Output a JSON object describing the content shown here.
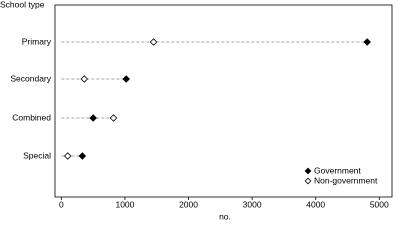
{
  "chart_data": {
    "type": "dot",
    "y_axis_label": "School type",
    "x_axis_label": "no.",
    "categories": [
      "Primary",
      "Secondary",
      "Combined",
      "Special"
    ],
    "series": [
      {
        "name": "Government",
        "marker": "filled",
        "color": "#000000",
        "values": [
          4810,
          1020,
          500,
          330
        ]
      },
      {
        "name": "Non-government",
        "marker": "open",
        "color": "#000000",
        "values": [
          1450,
          360,
          820,
          100
        ]
      }
    ],
    "xlim": [
      -100,
      5200
    ],
    "xticks": [
      0,
      1000,
      2000,
      3000,
      4000,
      5000
    ],
    "legend": "lower right"
  }
}
